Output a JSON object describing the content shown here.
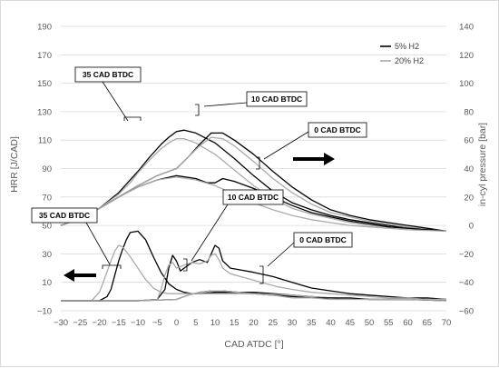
{
  "chart_data": {
    "type": "line",
    "xlabel": "CAD ATDC [°]",
    "ylabel_left": "HRR [J/CAD]",
    "ylabel_right": "in-cyl pressure [bar]",
    "xlim": [
      -30,
      70
    ],
    "ylim_left": [
      -10,
      190
    ],
    "ylim_right": [
      -60,
      140
    ],
    "x_ticks": [
      "−30",
      "−25",
      "−20",
      "−15",
      "−10",
      "−5",
      "0",
      "5",
      "10",
      "15",
      "20",
      "25",
      "30",
      "35",
      "40",
      "45",
      "50",
      "55",
      "60",
      "65",
      "70"
    ],
    "y_left_ticks": [
      "−10",
      "10",
      "30",
      "50",
      "70",
      "90",
      "110",
      "130",
      "150",
      "170",
      "190"
    ],
    "y_right_ticks": [
      "−60",
      "−40",
      "−20",
      "0",
      "20",
      "40",
      "60",
      "80",
      "100",
      "120",
      "140"
    ],
    "legend": {
      "position": "top-right",
      "items": [
        {
          "label": "5% H2",
          "color": "#000000"
        },
        {
          "label": "20% H2",
          "color": "#aaaaaa"
        }
      ]
    },
    "grid": true,
    "annotations": [
      {
        "text": "35 CAD BTDC"
      },
      {
        "text": "10 CAD BTDC"
      },
      {
        "text": "0 CAD BTDC"
      },
      {
        "text": "35 CAD BTDC"
      },
      {
        "text": "10 CAD BTDC"
      },
      {
        "text": "0 CAD BTDC"
      }
    ],
    "series": [
      {
        "group": "5% H2",
        "axis": "right",
        "color": "#000000",
        "points": [
          [
            -30,
            0
          ],
          [
            -25,
            5
          ],
          [
            -20,
            12
          ],
          [
            -15,
            23
          ],
          [
            -10,
            38
          ],
          [
            -7,
            48
          ],
          [
            -4,
            57
          ],
          [
            -2,
            62
          ],
          [
            0,
            66
          ],
          [
            2,
            67
          ],
          [
            5,
            65
          ],
          [
            10,
            58
          ],
          [
            15,
            47
          ],
          [
            20,
            35
          ],
          [
            25,
            24
          ],
          [
            30,
            16
          ],
          [
            35,
            11
          ],
          [
            40,
            7
          ],
          [
            45,
            4
          ],
          [
            50,
            2
          ],
          [
            55,
            0
          ],
          [
            60,
            -2
          ],
          [
            65,
            -3
          ],
          [
            70,
            -4
          ]
        ]
      },
      {
        "group": "20% H2",
        "axis": "right",
        "color": "#aaaaaa",
        "points": [
          [
            -30,
            0
          ],
          [
            -25,
            5
          ],
          [
            -20,
            12
          ],
          [
            -15,
            22
          ],
          [
            -12,
            30
          ],
          [
            -10,
            37
          ],
          [
            -7,
            46
          ],
          [
            -4,
            54
          ],
          [
            -2,
            58
          ],
          [
            0,
            61
          ],
          [
            2,
            61
          ],
          [
            5,
            58
          ],
          [
            10,
            50
          ],
          [
            15,
            39
          ],
          [
            20,
            28
          ],
          [
            25,
            19
          ],
          [
            30,
            12
          ],
          [
            35,
            8
          ],
          [
            40,
            5
          ],
          [
            45,
            2
          ],
          [
            50,
            0
          ],
          [
            55,
            -1
          ],
          [
            60,
            -2
          ],
          [
            65,
            -3
          ],
          [
            70,
            -4
          ]
        ]
      },
      {
        "group": "5% H2",
        "axis": "right",
        "color": "#000000",
        "points": [
          [
            -30,
            0
          ],
          [
            -25,
            5
          ],
          [
            -20,
            12
          ],
          [
            -15,
            20
          ],
          [
            -10,
            28
          ],
          [
            -5,
            35
          ],
          [
            0,
            40
          ],
          [
            3,
            48
          ],
          [
            6,
            57
          ],
          [
            9,
            65
          ],
          [
            12,
            65
          ],
          [
            15,
            60
          ],
          [
            20,
            50
          ],
          [
            25,
            38
          ],
          [
            30,
            27
          ],
          [
            35,
            18
          ],
          [
            40,
            11
          ],
          [
            45,
            7
          ],
          [
            50,
            4
          ],
          [
            55,
            2
          ],
          [
            60,
            0
          ],
          [
            65,
            -2
          ],
          [
            70,
            -4
          ]
        ]
      },
      {
        "group": "20% H2",
        "axis": "right",
        "color": "#aaaaaa",
        "points": [
          [
            -30,
            0
          ],
          [
            -25,
            5
          ],
          [
            -20,
            12
          ],
          [
            -15,
            20
          ],
          [
            -10,
            28
          ],
          [
            -5,
            35
          ],
          [
            0,
            40
          ],
          [
            3,
            48
          ],
          [
            6,
            56
          ],
          [
            9,
            62
          ],
          [
            12,
            61
          ],
          [
            15,
            56
          ],
          [
            20,
            45
          ],
          [
            25,
            33
          ],
          [
            30,
            23
          ],
          [
            35,
            15
          ],
          [
            40,
            9
          ],
          [
            45,
            6
          ],
          [
            50,
            3
          ],
          [
            55,
            1
          ],
          [
            60,
            -1
          ],
          [
            65,
            -3
          ],
          [
            70,
            -4
          ]
        ]
      },
      {
        "group": "5% H2",
        "axis": "right",
        "color": "#000000",
        "points": [
          [
            -30,
            0
          ],
          [
            -25,
            5
          ],
          [
            -20,
            12
          ],
          [
            -15,
            20
          ],
          [
            -10,
            27
          ],
          [
            -5,
            32
          ],
          [
            0,
            35
          ],
          [
            5,
            33
          ],
          [
            8,
            30
          ],
          [
            10,
            30
          ],
          [
            12,
            33
          ],
          [
            15,
            31
          ],
          [
            20,
            26
          ],
          [
            25,
            20
          ],
          [
            30,
            14
          ],
          [
            35,
            9
          ],
          [
            40,
            6
          ],
          [
            45,
            3
          ],
          [
            50,
            1
          ],
          [
            55,
            -1
          ],
          [
            60,
            -2
          ],
          [
            65,
            -3
          ],
          [
            70,
            -4
          ]
        ]
      },
      {
        "group": "20% H2",
        "axis": "right",
        "color": "#aaaaaa",
        "points": [
          [
            -30,
            0
          ],
          [
            -25,
            5
          ],
          [
            -20,
            12
          ],
          [
            -15,
            20
          ],
          [
            -10,
            27
          ],
          [
            -5,
            32
          ],
          [
            0,
            34
          ],
          [
            5,
            32
          ],
          [
            10,
            28
          ],
          [
            15,
            22
          ],
          [
            20,
            16
          ],
          [
            25,
            11
          ],
          [
            30,
            7
          ],
          [
            35,
            4
          ],
          [
            40,
            2
          ],
          [
            45,
            0
          ],
          [
            50,
            -1
          ],
          [
            55,
            -2
          ],
          [
            60,
            -3
          ],
          [
            65,
            -3.5
          ],
          [
            70,
            -4
          ]
        ]
      },
      {
        "group": "5% H2",
        "axis": "left",
        "color": "#000000",
        "points": [
          [
            -30,
            -3
          ],
          [
            -20,
            -3
          ],
          [
            -18,
            0
          ],
          [
            -17,
            5
          ],
          [
            -16,
            15
          ],
          [
            -15,
            25
          ],
          [
            -14,
            33
          ],
          [
            -13,
            40
          ],
          [
            -12,
            45
          ],
          [
            -10,
            46
          ],
          [
            -8,
            40
          ],
          [
            -6,
            28
          ],
          [
            -4,
            17
          ],
          [
            -2,
            9
          ],
          [
            0,
            5
          ],
          [
            2,
            3
          ],
          [
            4,
            2
          ],
          [
            6,
            2
          ],
          [
            10,
            3
          ],
          [
            15,
            3
          ],
          [
            20,
            3
          ],
          [
            25,
            2
          ],
          [
            30,
            1
          ],
          [
            35,
            0
          ],
          [
            40,
            -1
          ],
          [
            50,
            -2
          ],
          [
            60,
            -2
          ],
          [
            70,
            -3
          ]
        ]
      },
      {
        "group": "20% H2",
        "axis": "left",
        "color": "#aaaaaa",
        "points": [
          [
            -30,
            -3
          ],
          [
            -22,
            -3
          ],
          [
            -20,
            3
          ],
          [
            -19,
            10
          ],
          [
            -17,
            25
          ],
          [
            -16,
            32
          ],
          [
            -15,
            36
          ],
          [
            -14,
            35
          ],
          [
            -12,
            28
          ],
          [
            -10,
            20
          ],
          [
            -8,
            12
          ],
          [
            -6,
            6
          ],
          [
            -4,
            3
          ],
          [
            -2,
            2
          ],
          [
            0,
            2
          ],
          [
            5,
            2
          ],
          [
            10,
            2
          ],
          [
            15,
            2
          ],
          [
            20,
            2
          ],
          [
            30,
            1
          ],
          [
            40,
            -1
          ],
          [
            50,
            -2
          ],
          [
            60,
            -2
          ],
          [
            70,
            -3
          ]
        ]
      },
      {
        "group": "5% H2",
        "axis": "left",
        "color": "#000000",
        "points": [
          [
            -30,
            -3
          ],
          [
            -10,
            -3
          ],
          [
            -5,
            -2
          ],
          [
            -3,
            5
          ],
          [
            -2,
            20
          ],
          [
            -1,
            29
          ],
          [
            0,
            25
          ],
          [
            1,
            18
          ],
          [
            2,
            20
          ],
          [
            4,
            24
          ],
          [
            6,
            26
          ],
          [
            8,
            24
          ],
          [
            9,
            30
          ],
          [
            10,
            36
          ],
          [
            11,
            34
          ],
          [
            12,
            25
          ],
          [
            14,
            20
          ],
          [
            16,
            19
          ],
          [
            20,
            17
          ],
          [
            25,
            14
          ],
          [
            30,
            10
          ],
          [
            35,
            6
          ],
          [
            40,
            4
          ],
          [
            45,
            2
          ],
          [
            50,
            1
          ],
          [
            55,
            0
          ],
          [
            60,
            -1
          ],
          [
            65,
            -1
          ],
          [
            70,
            -2
          ]
        ]
      },
      {
        "group": "20% H2",
        "axis": "left",
        "color": "#aaaaaa",
        "points": [
          [
            -30,
            -3
          ],
          [
            -10,
            -3
          ],
          [
            -5,
            -2
          ],
          [
            -4,
            5
          ],
          [
            -3,
            15
          ],
          [
            -2,
            22
          ],
          [
            -1,
            24
          ],
          [
            0,
            20
          ],
          [
            2,
            22
          ],
          [
            4,
            24
          ],
          [
            6,
            23
          ],
          [
            8,
            25
          ],
          [
            9,
            29
          ],
          [
            10,
            30
          ],
          [
            11,
            26
          ],
          [
            12,
            20
          ],
          [
            14,
            16
          ],
          [
            18,
            13
          ],
          [
            22,
            10
          ],
          [
            26,
            7
          ],
          [
            30,
            5
          ],
          [
            35,
            3
          ],
          [
            40,
            2
          ],
          [
            45,
            1
          ],
          [
            50,
            0
          ],
          [
            55,
            -1
          ],
          [
            60,
            -1
          ],
          [
            65,
            -2
          ],
          [
            70,
            -2
          ]
        ]
      },
      {
        "group": "5% H2",
        "axis": "left",
        "color": "#000000",
        "points": [
          [
            -30,
            -3
          ],
          [
            -10,
            -3
          ],
          [
            0,
            -2
          ],
          [
            3,
            1
          ],
          [
            6,
            3
          ],
          [
            9,
            4
          ],
          [
            12,
            4
          ],
          [
            16,
            3
          ],
          [
            20,
            2
          ],
          [
            25,
            1
          ],
          [
            30,
            0
          ],
          [
            35,
            -1
          ],
          [
            40,
            -1
          ],
          [
            45,
            -1
          ],
          [
            50,
            -2
          ],
          [
            55,
            -2
          ],
          [
            60,
            -2
          ],
          [
            65,
            -2
          ],
          [
            70,
            -2
          ]
        ]
      },
      {
        "group": "20% H2",
        "axis": "left",
        "color": "#aaaaaa",
        "points": [
          [
            -30,
            -3
          ],
          [
            -10,
            -3
          ],
          [
            0,
            -2
          ],
          [
            3,
            1
          ],
          [
            6,
            3
          ],
          [
            9,
            4
          ],
          [
            12,
            4
          ],
          [
            16,
            3
          ],
          [
            20,
            2
          ],
          [
            25,
            1
          ],
          [
            30,
            -1
          ],
          [
            35,
            -1
          ],
          [
            40,
            -2
          ],
          [
            45,
            -2
          ],
          [
            50,
            -2
          ],
          [
            55,
            -2
          ],
          [
            60,
            -2
          ],
          [
            65,
            -2
          ],
          [
            70,
            -2
          ]
        ]
      }
    ]
  }
}
